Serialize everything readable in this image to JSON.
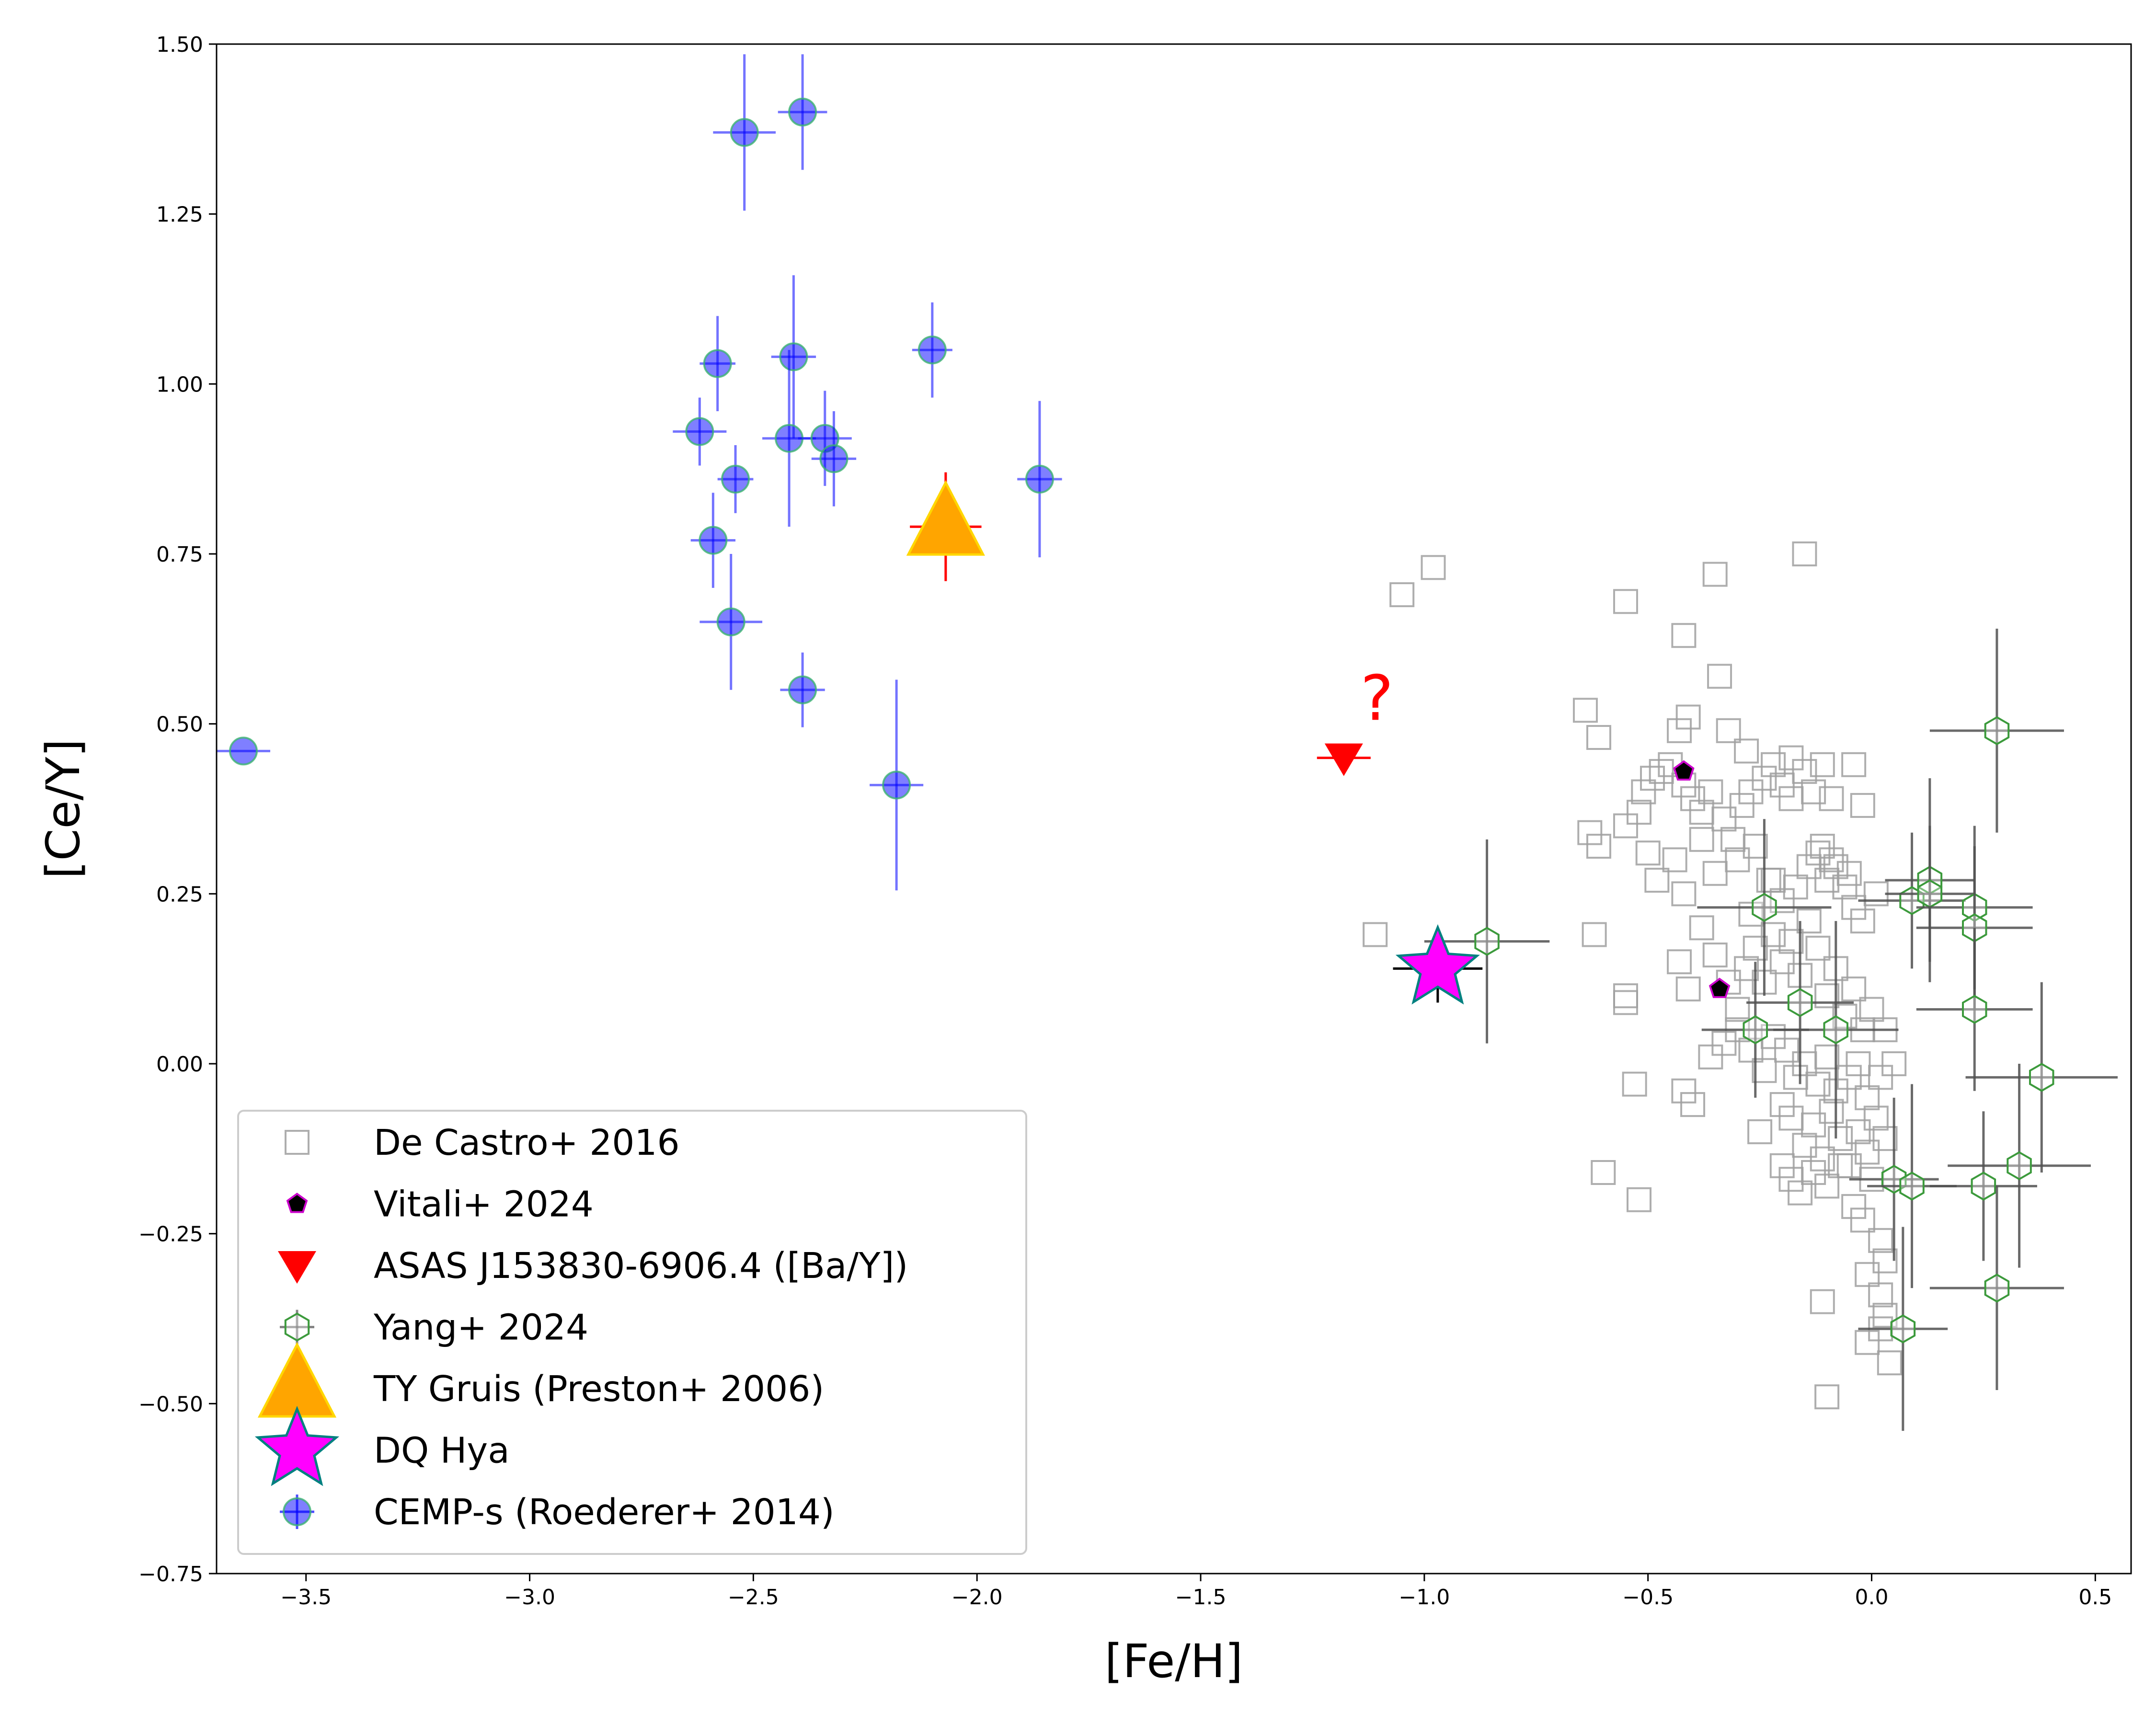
{
  "chart_data": {
    "type": "scatter",
    "xlabel": "[Fe/H]",
    "ylabel": "[Ce/Y]",
    "xlim": [
      -3.7,
      0.58
    ],
    "ylim": [
      -0.75,
      1.5
    ],
    "xticks": [
      -3.5,
      -3.0,
      -2.5,
      -2.0,
      -1.5,
      -1.0,
      -0.5,
      0.0,
      0.5
    ],
    "xtick_labels": [
      "−3.5",
      "−3.0",
      "−2.5",
      "−2.0",
      "−1.5",
      "−1.0",
      "−0.5",
      "0.0",
      "0.5"
    ],
    "yticks": [
      -0.75,
      -0.5,
      -0.25,
      0.0,
      0.25,
      0.5,
      0.75,
      1.0,
      1.25,
      1.5
    ],
    "ytick_labels": [
      "−0.75",
      "−0.50",
      "−0.25",
      "0.00",
      "0.25",
      "0.50",
      "0.75",
      "1.00",
      "1.25",
      "1.50"
    ],
    "grid": false,
    "legend_position": "lower-left",
    "annotation": {
      "text": "?",
      "x": -1.1,
      "y": 0.52,
      "color": "#ff0000"
    },
    "series": [
      {
        "name": "De Castro+ 2016",
        "marker": "square-open",
        "color": "#a0a0a0",
        "points": [
          [
            -1.05,
            0.69
          ],
          [
            -0.98,
            0.73
          ],
          [
            -1.11,
            0.19
          ],
          [
            -0.55,
            0.68
          ],
          [
            -0.35,
            0.72
          ],
          [
            -0.15,
            0.75
          ],
          [
            -0.42,
            0.63
          ],
          [
            -0.34,
            0.57
          ],
          [
            -0.64,
            0.52
          ],
          [
            -0.61,
            0.48
          ],
          [
            -0.43,
            0.49
          ],
          [
            -0.41,
            0.51
          ],
          [
            -0.32,
            0.49
          ],
          [
            -0.28,
            0.46
          ],
          [
            -0.18,
            0.45
          ],
          [
            -0.11,
            0.44
          ],
          [
            -0.04,
            0.44
          ],
          [
            -0.63,
            0.34
          ],
          [
            -0.61,
            0.32
          ],
          [
            -0.55,
            0.35
          ],
          [
            -0.52,
            0.37
          ],
          [
            -0.51,
            0.4
          ],
          [
            -0.49,
            0.42
          ],
          [
            -0.47,
            0.43
          ],
          [
            -0.45,
            0.44
          ],
          [
            -0.42,
            0.41
          ],
          [
            -0.4,
            0.39
          ],
          [
            -0.38,
            0.37
          ],
          [
            -0.36,
            0.4
          ],
          [
            -0.33,
            0.36
          ],
          [
            -0.31,
            0.33
          ],
          [
            -0.29,
            0.38
          ],
          [
            -0.27,
            0.4
          ],
          [
            -0.24,
            0.42
          ],
          [
            -0.22,
            0.44
          ],
          [
            -0.2,
            0.41
          ],
          [
            -0.18,
            0.39
          ],
          [
            -0.15,
            0.43
          ],
          [
            -0.13,
            0.4
          ],
          [
            -0.09,
            0.39
          ],
          [
            -0.02,
            0.38
          ],
          [
            -0.5,
            0.31
          ],
          [
            -0.48,
            0.27
          ],
          [
            -0.44,
            0.3
          ],
          [
            -0.42,
            0.25
          ],
          [
            -0.38,
            0.33
          ],
          [
            -0.35,
            0.28
          ],
          [
            -0.3,
            0.3
          ],
          [
            -0.26,
            0.32
          ],
          [
            -0.23,
            0.27
          ],
          [
            -0.2,
            0.24
          ],
          [
            -0.17,
            0.26
          ],
          [
            -0.14,
            0.29
          ],
          [
            -0.12,
            0.31
          ],
          [
            -0.1,
            0.27
          ],
          [
            -0.08,
            0.29
          ],
          [
            -0.06,
            0.26
          ],
          [
            -0.04,
            0.23
          ],
          [
            -0.02,
            0.21
          ],
          [
            -0.62,
            0.19
          ],
          [
            -0.55,
            0.1
          ],
          [
            -0.55,
            0.09
          ],
          [
            -0.43,
            0.15
          ],
          [
            -0.41,
            0.11
          ],
          [
            -0.38,
            0.2
          ],
          [
            -0.35,
            0.16
          ],
          [
            -0.32,
            0.12
          ],
          [
            -0.3,
            0.08
          ],
          [
            -0.28,
            0.14
          ],
          [
            -0.26,
            0.17
          ],
          [
            -0.24,
            0.12
          ],
          [
            -0.22,
            0.19
          ],
          [
            -0.2,
            0.15
          ],
          [
            -0.18,
            0.18
          ],
          [
            -0.16,
            0.13
          ],
          [
            -0.14,
            0.21
          ],
          [
            -0.12,
            0.17
          ],
          [
            -0.1,
            0.1
          ],
          [
            -0.08,
            0.14
          ],
          [
            -0.06,
            0.07
          ],
          [
            -0.04,
            0.11
          ],
          [
            -0.02,
            0.05
          ],
          [
            0.0,
            0.08
          ],
          [
            0.03,
            0.05
          ],
          [
            -0.36,
            0.01
          ],
          [
            -0.33,
            0.03
          ],
          [
            -0.3,
            0.05
          ],
          [
            -0.27,
            0.02
          ],
          [
            -0.24,
            -0.01
          ],
          [
            -0.22,
            0.04
          ],
          [
            -0.19,
            0.02
          ],
          [
            -0.17,
            -0.02
          ],
          [
            -0.15,
            0.0
          ],
          [
            -0.12,
            -0.03
          ],
          [
            -0.1,
            0.01
          ],
          [
            -0.08,
            -0.04
          ],
          [
            -0.05,
            -0.02
          ],
          [
            -0.03,
            0.0
          ],
          [
            -0.01,
            -0.05
          ],
          [
            0.02,
            -0.02
          ],
          [
            0.05,
            0.0
          ],
          [
            -0.53,
            -0.03
          ],
          [
            -0.42,
            -0.04
          ],
          [
            -0.4,
            -0.06
          ],
          [
            -0.25,
            -0.1
          ],
          [
            -0.2,
            -0.06
          ],
          [
            -0.18,
            -0.08
          ],
          [
            -0.15,
            -0.12
          ],
          [
            -0.13,
            -0.09
          ],
          [
            -0.11,
            -0.14
          ],
          [
            -0.09,
            -0.07
          ],
          [
            -0.07,
            -0.11
          ],
          [
            -0.05,
            -0.15
          ],
          [
            -0.03,
            -0.1
          ],
          [
            -0.01,
            -0.13
          ],
          [
            0.01,
            -0.08
          ],
          [
            0.03,
            -0.11
          ],
          [
            -0.6,
            -0.16
          ],
          [
            -0.52,
            -0.2
          ],
          [
            -0.2,
            -0.15
          ],
          [
            -0.18,
            -0.17
          ],
          [
            -0.16,
            -0.19
          ],
          [
            -0.13,
            -0.16
          ],
          [
            -0.1,
            -0.18
          ],
          [
            -0.07,
            -0.15
          ],
          [
            -0.04,
            -0.21
          ],
          [
            -0.02,
            -0.23
          ],
          [
            0.0,
            -0.17
          ],
          [
            0.02,
            -0.26
          ],
          [
            0.03,
            -0.29
          ],
          [
            -0.01,
            -0.31
          ],
          [
            0.02,
            -0.34
          ],
          [
            0.03,
            -0.37
          ],
          [
            -0.11,
            -0.35
          ],
          [
            -0.01,
            -0.41
          ],
          [
            0.02,
            -0.39
          ],
          [
            0.04,
            -0.44
          ],
          [
            -0.1,
            -0.49
          ],
          [
            -0.22,
            0.27
          ],
          [
            -0.11,
            0.32
          ],
          [
            -0.09,
            0.3
          ],
          [
            -0.05,
            0.28
          ],
          [
            0.01,
            0.25
          ],
          [
            -0.27,
            0.22
          ]
        ]
      },
      {
        "name": "Vitali+ 2024",
        "marker": "pentagon",
        "color": "#000000",
        "edge": "#cc00cc",
        "points": [
          [
            -0.42,
            0.43
          ],
          [
            -0.34,
            0.11
          ]
        ]
      },
      {
        "name": "ASAS J153830-6906.4 ([Ba/Y])",
        "marker": "triangle-down",
        "color": "#ff0000",
        "points": [
          [
            -1.18,
            0.45,
            0.06,
            0.0
          ]
        ]
      },
      {
        "name": "Yang+ 2024",
        "marker": "hexagon-open",
        "color": "#3c9a3c",
        "errcolor": "#505050",
        "points": [
          [
            -0.86,
            0.18,
            0.14,
            0.15
          ],
          [
            -0.24,
            0.23,
            0.15,
            0.13
          ],
          [
            -0.26,
            0.05,
            0.12,
            0.1
          ],
          [
            -0.16,
            0.09,
            0.12,
            0.12
          ],
          [
            -0.08,
            0.05,
            0.14,
            0.16
          ],
          [
            0.09,
            0.24,
            0.12,
            0.1
          ],
          [
            0.13,
            0.27,
            0.1,
            0.15
          ],
          [
            0.13,
            0.25,
            0.1,
            0.1
          ],
          [
            0.23,
            0.23,
            0.13,
            0.12
          ],
          [
            0.23,
            0.2,
            0.13,
            0.12
          ],
          [
            0.23,
            0.08,
            0.13,
            0.12
          ],
          [
            0.28,
            0.49,
            0.15,
            0.15
          ],
          [
            0.38,
            -0.02,
            0.17,
            0.14
          ],
          [
            0.33,
            -0.15,
            0.16,
            0.15
          ],
          [
            0.25,
            -0.18,
            0.12,
            0.11
          ],
          [
            0.28,
            -0.33,
            0.15,
            0.15
          ],
          [
            0.05,
            -0.17,
            0.1,
            0.12
          ],
          [
            0.09,
            -0.18,
            0.1,
            0.15
          ],
          [
            0.07,
            -0.39,
            0.1,
            0.15
          ]
        ]
      },
      {
        "name": "TY Gruis (Preston+ 2006)",
        "marker": "triangle-up",
        "color": "#ffa500",
        "edge": "#ffd700",
        "errcolor": "#ff0000",
        "points": [
          [
            -2.07,
            0.79,
            0.08,
            0.08
          ]
        ]
      },
      {
        "name": "DQ Hya",
        "marker": "star",
        "color": "#ff00ff",
        "edge": "#008080",
        "errcolor": "#000000",
        "points": [
          [
            -0.97,
            0.14,
            0.1,
            0.05
          ]
        ]
      },
      {
        "name": "CEMP-s (Roederer+ 2014)",
        "marker": "circle",
        "color": "#0000ff",
        "edge": "#3cb371",
        "errcolor": "#0000ff",
        "points": [
          [
            -2.52,
            1.37,
            0.07,
            0.115
          ],
          [
            -2.39,
            1.4,
            0.055,
            0.085
          ],
          [
            -2.58,
            1.03,
            0.04,
            0.07
          ],
          [
            -2.41,
            1.04,
            0.05,
            0.12
          ],
          [
            -2.1,
            1.05,
            0.045,
            0.07
          ],
          [
            -2.62,
            0.93,
            0.06,
            0.05
          ],
          [
            -2.54,
            0.86,
            0.04,
            0.05
          ],
          [
            -2.42,
            0.92,
            0.06,
            0.13
          ],
          [
            -2.34,
            0.92,
            0.06,
            0.07
          ],
          [
            -2.32,
            0.89,
            0.05,
            0.07
          ],
          [
            -1.86,
            0.86,
            0.05,
            0.115
          ],
          [
            -2.59,
            0.77,
            0.05,
            0.07
          ],
          [
            -2.55,
            0.65,
            0.07,
            0.1
          ],
          [
            -2.39,
            0.55,
            0.05,
            0.055
          ],
          [
            -2.18,
            0.41,
            0.06,
            0.155
          ],
          [
            -3.64,
            0.46,
            0.06,
            0.0
          ]
        ]
      }
    ]
  }
}
